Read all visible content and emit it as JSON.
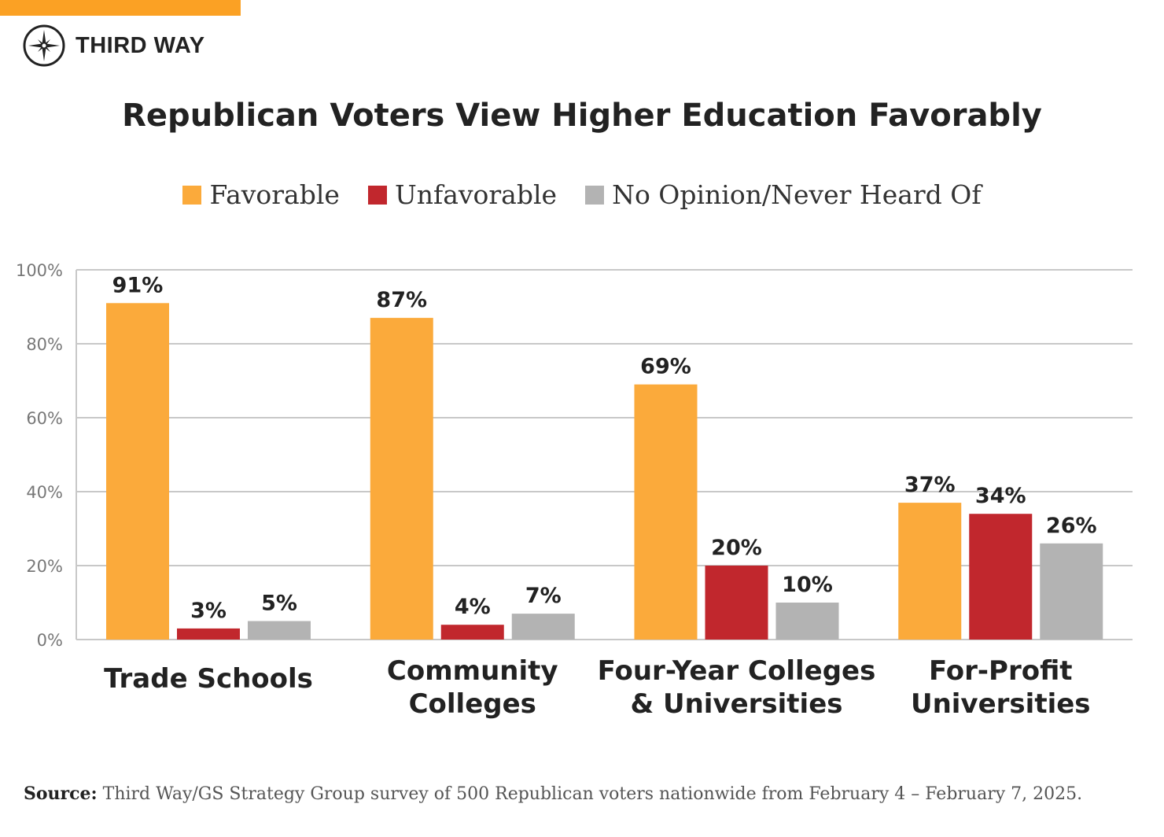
{
  "brand": {
    "name": "THIRD WAY",
    "accent": "#fba124"
  },
  "chart_data": {
    "type": "bar",
    "title": "Republican Voters View Higher Education Favorably",
    "categories": [
      "Trade Schools",
      "Community Colleges",
      "Four-Year Colleges & Universities",
      "For-Profit Universities"
    ],
    "category_lines": [
      [
        "Trade Schools"
      ],
      [
        "Community",
        "Colleges"
      ],
      [
        "Four-Year Colleges",
        "& Universities"
      ],
      [
        "For-Profit",
        "Universities"
      ]
    ],
    "series": [
      {
        "name": "Favorable",
        "color": "#fbaa3b",
        "values": [
          91,
          87,
          69,
          37
        ]
      },
      {
        "name": "Unfavorable",
        "color": "#c1272d",
        "values": [
          3,
          4,
          20,
          34
        ]
      },
      {
        "name": "No Opinion/Never Heard Of",
        "color": "#b3b3b3",
        "values": [
          5,
          7,
          10,
          26
        ]
      }
    ],
    "ylim": [
      0,
      100
    ],
    "yticks": [
      "0%",
      "20%",
      "40%",
      "60%",
      "80%",
      "100%"
    ],
    "data_label_suffix": "%",
    "grid": true,
    "legend_position": "top"
  },
  "source": {
    "label": "Source:",
    "text": " Third Way/GS Strategy Group survey of 500 Republican voters nationwide from February 4 – February 7, 2025."
  }
}
